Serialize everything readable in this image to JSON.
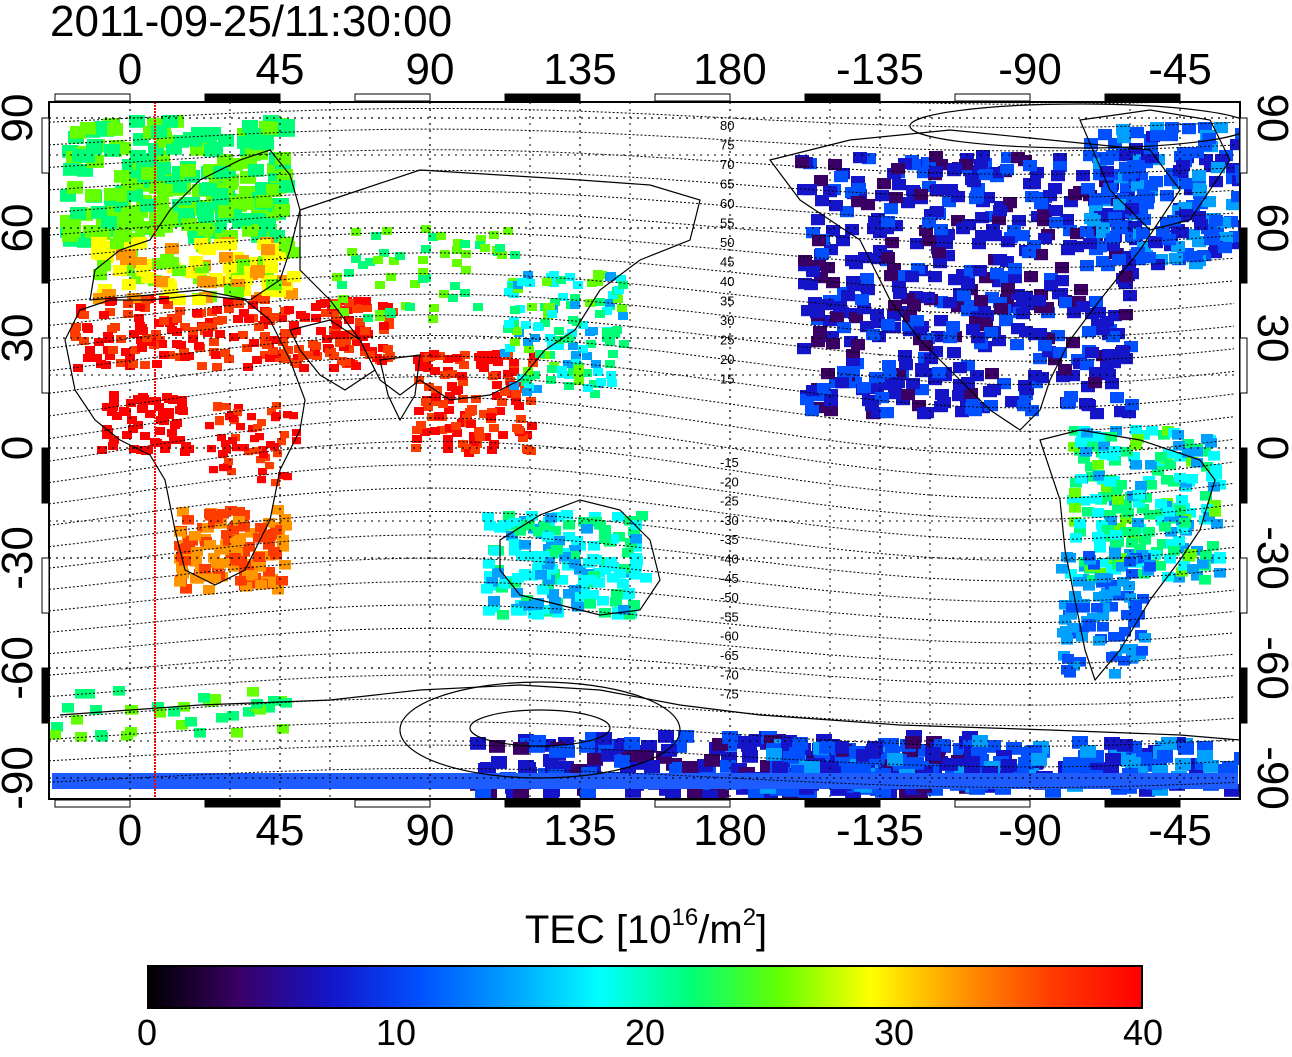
{
  "title": "2011-09-25/11:30:00",
  "map": {
    "type": "TEC map",
    "top_lon_ticks": [
      "0",
      "45",
      "90",
      "135",
      "180",
      "-135",
      "-90",
      "-45"
    ],
    "bottom_lon_ticks": [
      "0",
      "45",
      "90",
      "135",
      "180",
      "-135",
      "-90",
      "-45"
    ],
    "left_lat_ticks": [
      "90",
      "60",
      "30",
      "0",
      "-30",
      "-60",
      "-90"
    ],
    "right_lat_ticks": [
      "90",
      "60",
      "30",
      "0",
      "-30",
      "-60",
      "-90"
    ],
    "contour_labels_north": [
      "80",
      "75",
      "70",
      "65",
      "60",
      "55",
      "50",
      "45",
      "40",
      "35",
      "30",
      "25",
      "20",
      "15"
    ],
    "contour_labels_south": [
      "-15",
      "-20",
      "-25",
      "-30",
      "-35",
      "-40",
      "-45",
      "-50",
      "-55",
      "-60",
      "-65",
      "-70",
      "-75"
    ],
    "terminator_line_color": "#ff0000"
  },
  "colorbar": {
    "title": "TEC  [10",
    "title_exp": "16",
    "title_unit": "/m",
    "title_exp2": "2",
    "title_end": "]",
    "ticks": [
      "0",
      "10",
      "20",
      "30",
      "40"
    ],
    "colors": [
      "#000000",
      "#3a0066",
      "#1414c8",
      "#0050ff",
      "#00a0ff",
      "#00ffff",
      "#00ff78",
      "#64ff00",
      "#ffff00",
      "#ff9600",
      "#ff3c00",
      "#ff0000"
    ]
  }
}
